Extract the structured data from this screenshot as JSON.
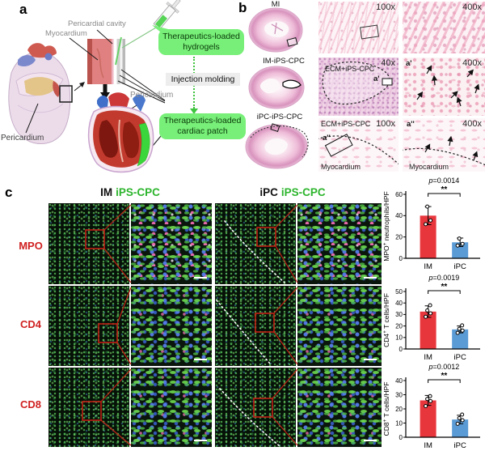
{
  "panel_a": {
    "label": "a",
    "pericardial_cavity": "Pericardial cavity",
    "myocardium": "Myocardium",
    "pericardium_left": "Pericardium",
    "pericardium_right": "Pericardium",
    "hydrogel_bubble": "Therapeutics-loaded hydrogels",
    "injection_step": "Injection molding",
    "patch_bubble": "Therapeutics-loaded cardiac patch",
    "bubble_color": "#78ef78",
    "arrow_color": "#3fc43f"
  },
  "panel_b": {
    "label": "b",
    "sections": [
      {
        "name": "MI"
      },
      {
        "name": "IM-iPS-CPC"
      },
      {
        "name": "iPC-iPS-CPC"
      }
    ],
    "micrographs": {
      "r1c1": {
        "mag": "100x"
      },
      "r1c2": {
        "mag": "400x"
      },
      "r2c1": {
        "mag": "40x",
        "region": "ECM+iPS-CPC",
        "marker": "a'"
      },
      "r2c2": {
        "mag": "400x",
        "marker": "a'"
      },
      "r3c1": {
        "mag": "100x",
        "region": "ECM+iPS-CPC",
        "marker": "a''",
        "tissue": "Myocardium"
      },
      "r3c2": {
        "mag": "400x",
        "marker": "a''",
        "tissue": "Myocardium"
      }
    }
  },
  "panel_c": {
    "label": "c",
    "headers": [
      {
        "prefix": "IM",
        "suffix": "iPS-CPC"
      },
      {
        "prefix": "iPC",
        "suffix": "iPS-CPC"
      }
    ],
    "rows": [
      "MPO",
      "CD4",
      "CD8"
    ],
    "accent_green": "#2db52d",
    "label_red": "#d02020"
  },
  "chart_data": [
    {
      "type": "bar",
      "categories": [
        "IM",
        "iPC"
      ],
      "values": [
        40,
        15
      ],
      "errors": [
        8.5,
        4
      ],
      "points": [
        [
          32,
          35.5,
          48.5
        ],
        [
          12,
          13.5,
          18.5
        ]
      ],
      "p_text": "p=0.0014",
      "sig": "**",
      "ylabel_pre": "MPO",
      "ylabel_sup": "+",
      "ylabel_post": " neutrophils/HPF",
      "ylim": [
        0,
        60
      ],
      "yticks": [
        0,
        20,
        40,
        60
      ],
      "bar_colors": [
        "#e8363d",
        "#5b9bd5"
      ]
    },
    {
      "type": "bar",
      "categories": [
        "IM",
        "iPC"
      ],
      "values": [
        32.5,
        17
      ],
      "errors": [
        5,
        3
      ],
      "points": [
        [
          28,
          31,
          33.5,
          38
        ],
        [
          14,
          16,
          17.5,
          20.5
        ]
      ],
      "p_text": "p=0.0019",
      "sig": "**",
      "ylabel_pre": "CD4",
      "ylabel_sup": "+",
      "ylabel_post": " T cells/HPF",
      "ylim": [
        0,
        50
      ],
      "yticks": [
        0,
        10,
        20,
        30,
        40,
        50
      ],
      "bar_colors": [
        "#e8363d",
        "#5b9bd5"
      ]
    },
    {
      "type": "bar",
      "categories": [
        "IM",
        "iPC"
      ],
      "values": [
        26,
        12.5
      ],
      "errors": [
        3.5,
        3
      ],
      "points": [
        [
          22,
          25.5,
          27,
          29
        ],
        [
          9.5,
          12,
          13.5,
          16
        ]
      ],
      "p_text": "p=0.0012",
      "sig": "**",
      "ylabel_pre": "CD8",
      "ylabel_sup": "+",
      "ylabel_post": " T cells/HPF",
      "ylim": [
        0,
        40
      ],
      "yticks": [
        0,
        10,
        20,
        30,
        40
      ],
      "bar_colors": [
        "#e8363d",
        "#5b9bd5"
      ]
    }
  ]
}
